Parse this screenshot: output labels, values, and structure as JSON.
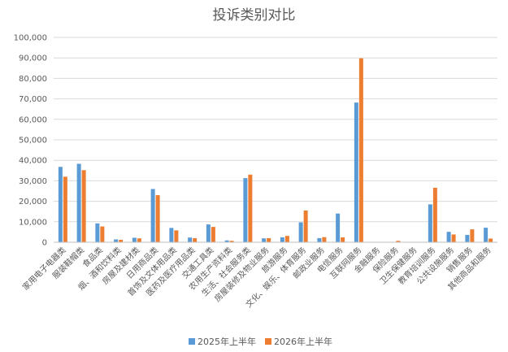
{
  "chart_data": {
    "type": "bar",
    "title": "投诉类别对比",
    "xlabel": "",
    "ylabel": "",
    "ylim": [
      0,
      100000
    ],
    "yticks": [
      0,
      10000,
      20000,
      30000,
      40000,
      50000,
      60000,
      70000,
      80000,
      90000,
      100000
    ],
    "ytick_labels": [
      "0",
      "10,000",
      "20,000",
      "30,000",
      "40,000",
      "50,000",
      "60,000",
      "70,000",
      "80,000",
      "90,000",
      "100,000"
    ],
    "grid": true,
    "legend_position": "bottom",
    "categories": [
      "家用电子电器类",
      "服装鞋帽类",
      "食品类",
      "烟、酒和饮料类",
      "房屋及建材类",
      "日用商品类",
      "首饰及文体用品类",
      "医药及医疗用品类",
      "交通工具类",
      "农用生产资料类",
      "生活、社会服务类",
      "房屋装修及物业服务",
      "旅游服务",
      "文化、娱乐、体育服务",
      "邮政业服务",
      "电信服务",
      "互联网服务",
      "金融服务",
      "保险服务",
      "卫生保健服务",
      "教育培训服务",
      "公共设施服务",
      "销售服务",
      "其他商品和服务"
    ],
    "series": [
      {
        "name": "2025年上半年",
        "color": "#5b9bd5",
        "values": [
          36800,
          38300,
          9200,
          1400,
          2200,
          26000,
          7000,
          2300,
          8700,
          900,
          31300,
          1900,
          2400,
          9700,
          2000,
          14000,
          68200,
          0,
          0,
          0,
          18500,
          5100,
          3600,
          7100
        ]
      },
      {
        "name": "2026年上半年",
        "color": "#ed7d31",
        "values": [
          32000,
          35200,
          7700,
          1200,
          1900,
          23000,
          5800,
          2000,
          7500,
          700,
          33000,
          2000,
          3100,
          15500,
          2500,
          2400,
          89800,
          0,
          700,
          0,
          26600,
          3800,
          6300,
          1800
        ]
      }
    ]
  }
}
